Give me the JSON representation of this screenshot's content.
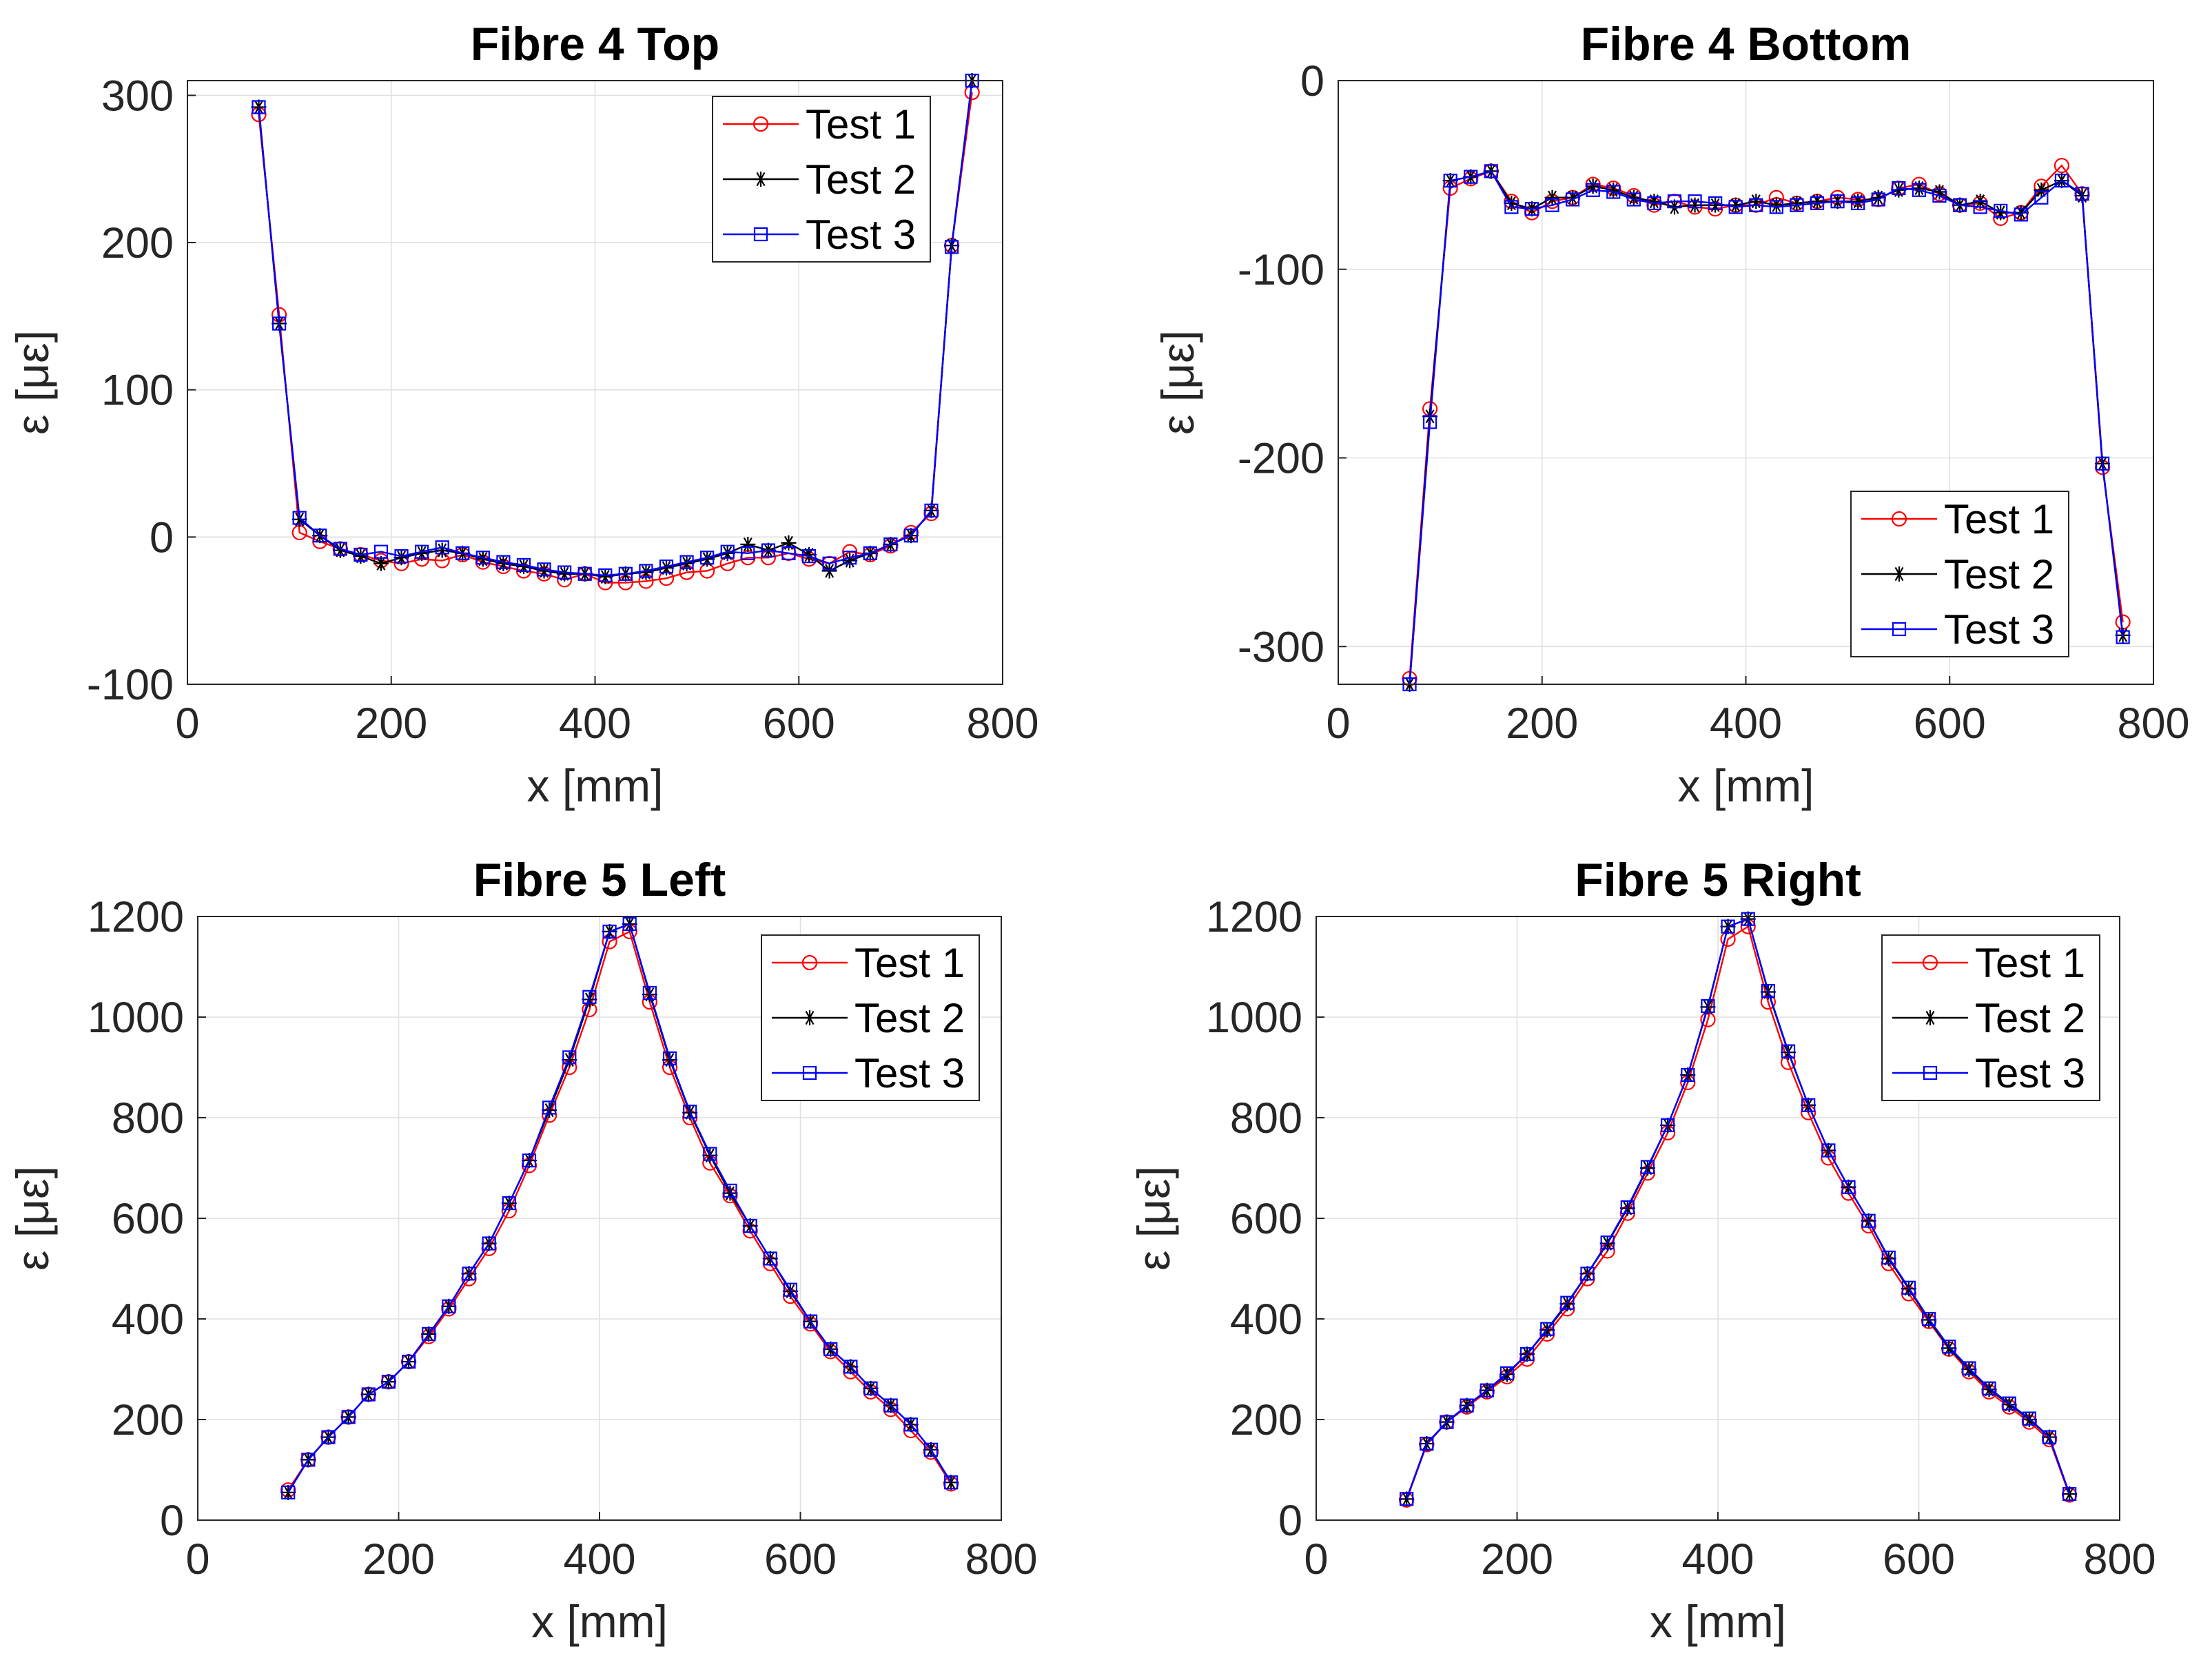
{
  "chart_data": [
    {
      "type": "line",
      "title": "Fibre 4 Top",
      "xlabel": "x [mm]",
      "ylabel": "ε [με]",
      "xlim": [
        0,
        800
      ],
      "ylim": [
        -100,
        310
      ],
      "xticks": [
        0,
        200,
        400,
        600,
        800
      ],
      "yticks": [
        -100,
        0,
        100,
        200,
        300
      ],
      "xtick_labels": [
        "0",
        "200",
        "400",
        "600",
        "800"
      ],
      "ytick_labels": [
        "-100",
        "0",
        "100",
        "200",
        "300"
      ],
      "grid": true,
      "legend_position": "top-right",
      "x": [
        70,
        90,
        110,
        130,
        150,
        170,
        190,
        210,
        230,
        250,
        270,
        290,
        310,
        330,
        350,
        370,
        390,
        410,
        430,
        450,
        470,
        490,
        510,
        530,
        550,
        570,
        590,
        610,
        630,
        650,
        670,
        690,
        710,
        730,
        750,
        770
      ],
      "series": [
        {
          "name": "Test 1",
          "color": "#ff0000",
          "marker": "circle",
          "values": [
            287,
            151,
            3,
            -3,
            -8,
            -12,
            -16,
            -18,
            -15,
            -16,
            -12,
            -17,
            -20,
            -23,
            -25,
            -29,
            -25,
            -31,
            -31,
            -30,
            -28,
            -24,
            -23,
            -18,
            -14,
            -14,
            -11,
            -15,
            -18,
            -10,
            -12,
            -6,
            3,
            16,
            198,
            302
          ]
        },
        {
          "name": "Test 2",
          "color": "#000000",
          "marker": "star",
          "values": [
            292,
            145,
            12,
            1,
            -9,
            -13,
            -18,
            -14,
            -11,
            -9,
            -11,
            -15,
            -18,
            -20,
            -23,
            -25,
            -25,
            -27,
            -25,
            -24,
            -21,
            -18,
            -15,
            -11,
            -5,
            -9,
            -4,
            -12,
            -23,
            -16,
            -11,
            -5,
            1,
            18,
            198,
            310
          ]
        },
        {
          "name": "Test 3",
          "color": "#0000ff",
          "marker": "square",
          "values": [
            292,
            145,
            13,
            1,
            -8,
            -12,
            -10,
            -13,
            -10,
            -7,
            -11,
            -14,
            -17,
            -19,
            -22,
            -24,
            -25,
            -26,
            -25,
            -23,
            -20,
            -17,
            -14,
            -10,
            -11,
            -9,
            -11,
            -13,
            -18,
            -14,
            -11,
            -5,
            1,
            18,
            197,
            310
          ]
        }
      ]
    },
    {
      "type": "line",
      "title": "Fibre 4 Bottom",
      "xlabel": "x [mm]",
      "ylabel": "ε [με]",
      "xlim": [
        0,
        800
      ],
      "ylim": [
        -320,
        0
      ],
      "xticks": [
        0,
        200,
        400,
        600,
        800
      ],
      "yticks": [
        -300,
        -200,
        -100,
        0
      ],
      "xtick_labels": [
        "0",
        "200",
        "400",
        "600",
        "800"
      ],
      "ytick_labels": [
        "-300",
        "-200",
        "-100",
        "0"
      ],
      "grid": true,
      "legend_position": "bottom-right",
      "x": [
        70,
        90,
        110,
        130,
        150,
        170,
        190,
        210,
        230,
        250,
        270,
        290,
        310,
        330,
        350,
        370,
        390,
        410,
        430,
        450,
        470,
        490,
        510,
        530,
        550,
        570,
        590,
        610,
        630,
        650,
        670,
        690,
        710,
        730,
        750,
        770
      ],
      "series": [
        {
          "name": "Test 1",
          "color": "#ff0000",
          "marker": "circle",
          "values": [
            -317,
            -174,
            -57,
            -52,
            -48,
            -64,
            -70,
            -64,
            -62,
            -55,
            -57,
            -61,
            -66,
            -64,
            -67,
            -68,
            -66,
            -66,
            -62,
            -65,
            -64,
            -62,
            -63,
            -63,
            -57,
            -55,
            -60,
            -66,
            -65,
            -73,
            -70,
            -56,
            -45,
            -60,
            -205,
            -287
          ]
        },
        {
          "name": "Test 2",
          "color": "#000000",
          "marker": "star",
          "values": [
            -320,
            -178,
            -53,
            -51,
            -48,
            -65,
            -68,
            -62,
            -62,
            -56,
            -58,
            -62,
            -64,
            -67,
            -66,
            -66,
            -66,
            -64,
            -66,
            -65,
            -64,
            -64,
            -64,
            -62,
            -58,
            -57,
            -59,
            -66,
            -64,
            -70,
            -70,
            -58,
            -53,
            -61,
            -203,
            -294
          ]
        },
        {
          "name": "Test 3",
          "color": "#0000ff",
          "marker": "square",
          "values": [
            -320,
            -181,
            -53,
            -51,
            -48,
            -67,
            -68,
            -66,
            -63,
            -58,
            -59,
            -63,
            -65,
            -64,
            -64,
            -65,
            -67,
            -66,
            -67,
            -66,
            -65,
            -64,
            -65,
            -63,
            -57,
            -58,
            -61,
            -66,
            -67,
            -69,
            -71,
            -62,
            -53,
            -60,
            -203,
            -295
          ]
        }
      ]
    },
    {
      "type": "line",
      "title": "Fibre 5 Left",
      "xlabel": "x [mm]",
      "ylabel": "ε [με]",
      "xlim": [
        0,
        800
      ],
      "ylim": [
        0,
        1200
      ],
      "xticks": [
        0,
        200,
        400,
        600,
        800
      ],
      "yticks": [
        0,
        200,
        400,
        600,
        800,
        1000,
        1200
      ],
      "xtick_labels": [
        "0",
        "200",
        "400",
        "600",
        "800"
      ],
      "ytick_labels": [
        "0",
        "200",
        "400",
        "600",
        "800",
        "1000",
        "1200"
      ],
      "grid": true,
      "legend_position": "top-right",
      "x": [
        90,
        110,
        130,
        150,
        170,
        190,
        210,
        230,
        250,
        270,
        290,
        310,
        330,
        350,
        370,
        390,
        410,
        430,
        450,
        470,
        490,
        510,
        530,
        550,
        570,
        590,
        610,
        630,
        650,
        670,
        690,
        710,
        730,
        750
      ],
      "series": [
        {
          "name": "Test 1",
          "color": "#ff0000",
          "marker": "circle",
          "values": [
            60,
            120,
            165,
            205,
            250,
            275,
            315,
            365,
            420,
            480,
            540,
            615,
            705,
            805,
            900,
            1015,
            1150,
            1170,
            1030,
            900,
            800,
            710,
            645,
            575,
            510,
            445,
            390,
            335,
            295,
            255,
            220,
            178,
            135,
            72
          ]
        },
        {
          "name": "Test 2",
          "color": "#000000",
          "marker": "star",
          "values": [
            55,
            120,
            165,
            205,
            250,
            275,
            315,
            370,
            425,
            490,
            550,
            630,
            715,
            815,
            915,
            1035,
            1170,
            1185,
            1045,
            915,
            810,
            725,
            650,
            585,
            520,
            455,
            395,
            340,
            305,
            262,
            228,
            190,
            140,
            75
          ]
        },
        {
          "name": "Test 3",
          "color": "#0000ff",
          "marker": "square",
          "values": [
            55,
            120,
            165,
            205,
            250,
            275,
            315,
            370,
            425,
            490,
            550,
            630,
            715,
            820,
            920,
            1040,
            1170,
            1185,
            1048,
            918,
            812,
            728,
            655,
            585,
            520,
            458,
            395,
            340,
            305,
            262,
            228,
            190,
            140,
            75
          ]
        }
      ]
    },
    {
      "type": "line",
      "title": "Fibre 5 Right",
      "xlabel": "x [mm]",
      "ylabel": "ε [με]",
      "xlim": [
        0,
        800
      ],
      "ylim": [
        0,
        1200
      ],
      "xticks": [
        0,
        200,
        400,
        600,
        800
      ],
      "yticks": [
        0,
        200,
        400,
        600,
        800,
        1000,
        1200
      ],
      "xtick_labels": [
        "0",
        "200",
        "400",
        "600",
        "800"
      ],
      "ytick_labels": [
        "0",
        "200",
        "400",
        "600",
        "800",
        "1000",
        "1200"
      ],
      "grid": true,
      "legend_position": "top-right",
      "x": [
        90,
        110,
        130,
        150,
        170,
        190,
        210,
        230,
        250,
        270,
        290,
        310,
        330,
        350,
        370,
        390,
        410,
        430,
        450,
        470,
        490,
        510,
        530,
        550,
        570,
        590,
        610,
        630,
        650,
        670,
        690,
        710,
        730,
        750
      ],
      "series": [
        {
          "name": "Test 1",
          "color": "#ff0000",
          "marker": "circle",
          "values": [
            40,
            150,
            195,
            225,
            255,
            285,
            320,
            370,
            420,
            480,
            535,
            610,
            690,
            770,
            870,
            995,
            1155,
            1180,
            1030,
            910,
            810,
            720,
            650,
            585,
            510,
            450,
            395,
            340,
            295,
            255,
            225,
            195,
            160,
            50
          ]
        },
        {
          "name": "Test 2",
          "color": "#000000",
          "marker": "star",
          "values": [
            42,
            152,
            195,
            228,
            258,
            290,
            330,
            378,
            430,
            490,
            550,
            620,
            700,
            785,
            885,
            1020,
            1180,
            1195,
            1050,
            930,
            825,
            735,
            662,
            595,
            520,
            460,
            398,
            342,
            300,
            260,
            230,
            200,
            165,
            52
          ]
        },
        {
          "name": "Test 3",
          "color": "#0000ff",
          "marker": "square",
          "values": [
            42,
            152,
            195,
            228,
            258,
            292,
            330,
            380,
            432,
            490,
            552,
            622,
            702,
            785,
            885,
            1022,
            1180,
            1195,
            1052,
            932,
            825,
            735,
            662,
            595,
            522,
            462,
            400,
            345,
            302,
            262,
            232,
            202,
            165,
            52
          ]
        }
      ]
    }
  ]
}
